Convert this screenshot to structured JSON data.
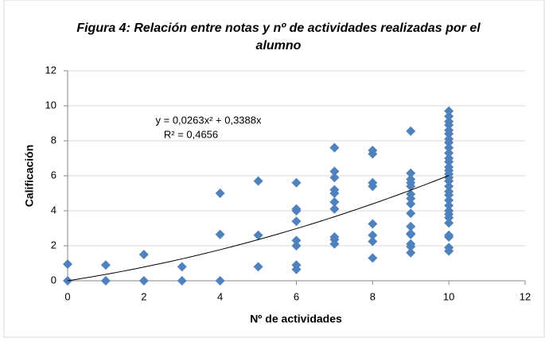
{
  "chart_data": {
    "type": "scatter",
    "title": [
      "Figura 4: Relación entre notas y nº de actividades realizadas por el",
      "alumno"
    ],
    "x_label": "Nº de actividades",
    "y_label": "Calificación",
    "series": [
      {
        "color": "#4f81bd",
        "x": [
          0,
          0,
          1,
          1,
          2,
          2,
          3,
          3,
          4,
          4,
          4,
          5,
          5,
          5,
          6,
          6,
          6,
          6,
          6,
          6,
          6,
          6,
          7,
          7,
          7,
          7,
          7,
          7,
          7,
          7,
          7,
          7,
          8,
          8,
          8,
          8,
          8,
          8,
          8,
          8,
          9,
          9,
          9,
          9,
          9,
          9,
          9,
          9,
          9,
          9,
          9,
          9,
          9,
          9,
          9,
          10,
          10,
          10,
          10,
          10,
          10,
          10,
          10,
          10,
          10,
          10,
          10,
          10,
          10,
          10,
          10,
          10,
          10,
          10,
          10,
          10,
          10,
          10,
          10,
          10,
          10,
          10,
          10,
          10,
          10
        ],
        "y": [
          0,
          0.95,
          0,
          0.9,
          0,
          1.5,
          0,
          0.8,
          0,
          2.65,
          5.0,
          0.8,
          2.6,
          5.7,
          0.65,
          0.9,
          2.0,
          2.3,
          3.4,
          4.0,
          4.1,
          5.6,
          2.1,
          2.35,
          2.5,
          4.1,
          4.5,
          5.0,
          5.2,
          5.9,
          6.25,
          7.6,
          1.3,
          2.25,
          2.6,
          3.25,
          5.4,
          5.6,
          7.25,
          7.45,
          1.6,
          1.95,
          2.1,
          2.65,
          2.7,
          3.1,
          3.85,
          4.4,
          4.7,
          4.95,
          5.4,
          5.6,
          5.8,
          6.15,
          8.55,
          1.7,
          1.9,
          2.5,
          2.6,
          3.3,
          3.6,
          3.8,
          4.0,
          4.3,
          4.6,
          4.9,
          5.1,
          5.4,
          5.7,
          5.9,
          6.1,
          6.3,
          6.5,
          6.8,
          7.0,
          7.3,
          7.6,
          7.9,
          8.1,
          8.4,
          8.6,
          8.9,
          9.1,
          9.4,
          9.7
        ]
      }
    ],
    "trendline": {
      "equation": "y = 0,0263x² + 0,3388x",
      "r2_label": "R² = 0,4656",
      "coefficients": [
        0.0263,
        0.3388
      ]
    },
    "xlim": [
      0,
      12
    ],
    "xticks": [
      0,
      2,
      4,
      6,
      8,
      10,
      12
    ],
    "ylim": [
      0,
      12
    ],
    "yticks": [
      0,
      2,
      4,
      6,
      8,
      10,
      12
    ],
    "grid": true
  }
}
